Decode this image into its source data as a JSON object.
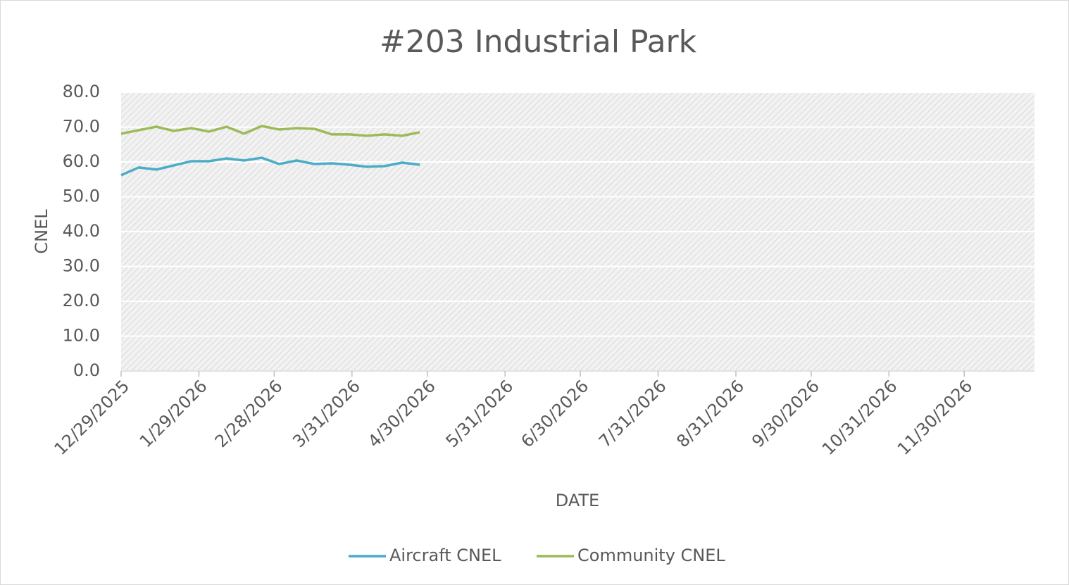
{
  "chart_data": {
    "type": "line",
    "title": "#203 Industrial Park",
    "x_label": "DATE",
    "y_label": "CNEL",
    "x": [
      "2025-12-29",
      "2026-01-05",
      "2026-01-12",
      "2026-01-19",
      "2026-01-26",
      "2026-02-02",
      "2026-02-09",
      "2026-02-16",
      "2026-02-23",
      "2026-03-02",
      "2026-03-09",
      "2026-03-16",
      "2026-03-23",
      "2026-03-30",
      "2026-04-06",
      "2026-04-13",
      "2026-04-20",
      "2026-04-27"
    ],
    "series": [
      {
        "name": "Aircraft CNEL",
        "color": "#4bacc6",
        "values": [
          56.2,
          58.4,
          57.8,
          59.0,
          60.2,
          60.2,
          61.0,
          60.4,
          61.2,
          59.4,
          60.4,
          59.4,
          59.6,
          59.2,
          58.6,
          58.8,
          59.8,
          59.2
        ]
      },
      {
        "name": "Community CNEL",
        "color": "#9bbb59",
        "values": [
          68.1,
          69.1,
          70.1,
          68.9,
          69.7,
          68.7,
          70.1,
          68.1,
          70.3,
          69.3,
          69.7,
          69.5,
          67.9,
          67.9,
          67.5,
          67.9,
          67.5,
          68.5
        ]
      }
    ],
    "xlim": [
      "2025-12-29",
      "2026-12-28"
    ],
    "xticks": [
      {
        "value": "2025-12-29",
        "label": "12/29/2025"
      },
      {
        "value": "2026-01-29",
        "label": "1/29/2026"
      },
      {
        "value": "2026-02-28",
        "label": "2/28/2026"
      },
      {
        "value": "2026-03-31",
        "label": "3/31/2026"
      },
      {
        "value": "2026-04-30",
        "label": "4/30/2026"
      },
      {
        "value": "2026-05-31",
        "label": "5/31/2026"
      },
      {
        "value": "2026-06-30",
        "label": "6/30/2026"
      },
      {
        "value": "2026-07-31",
        "label": "7/31/2026"
      },
      {
        "value": "2026-08-31",
        "label": "8/31/2026"
      },
      {
        "value": "2026-09-30",
        "label": "9/30/2026"
      },
      {
        "value": "2026-10-31",
        "label": "10/31/2026"
      },
      {
        "value": "2026-11-30",
        "label": "11/30/2026"
      }
    ],
    "ylim": [
      0,
      80
    ],
    "yticks": [
      {
        "value": 0,
        "label": "0.0"
      },
      {
        "value": 10,
        "label": "10.0"
      },
      {
        "value": 20,
        "label": "20.0"
      },
      {
        "value": 30,
        "label": "30.0"
      },
      {
        "value": 40,
        "label": "40.0"
      },
      {
        "value": 50,
        "label": "50.0"
      },
      {
        "value": 60,
        "label": "60.0"
      },
      {
        "value": 70,
        "label": "70.0"
      },
      {
        "value": 80,
        "label": "80.0"
      }
    ],
    "grid": true,
    "legend": "bottom"
  }
}
